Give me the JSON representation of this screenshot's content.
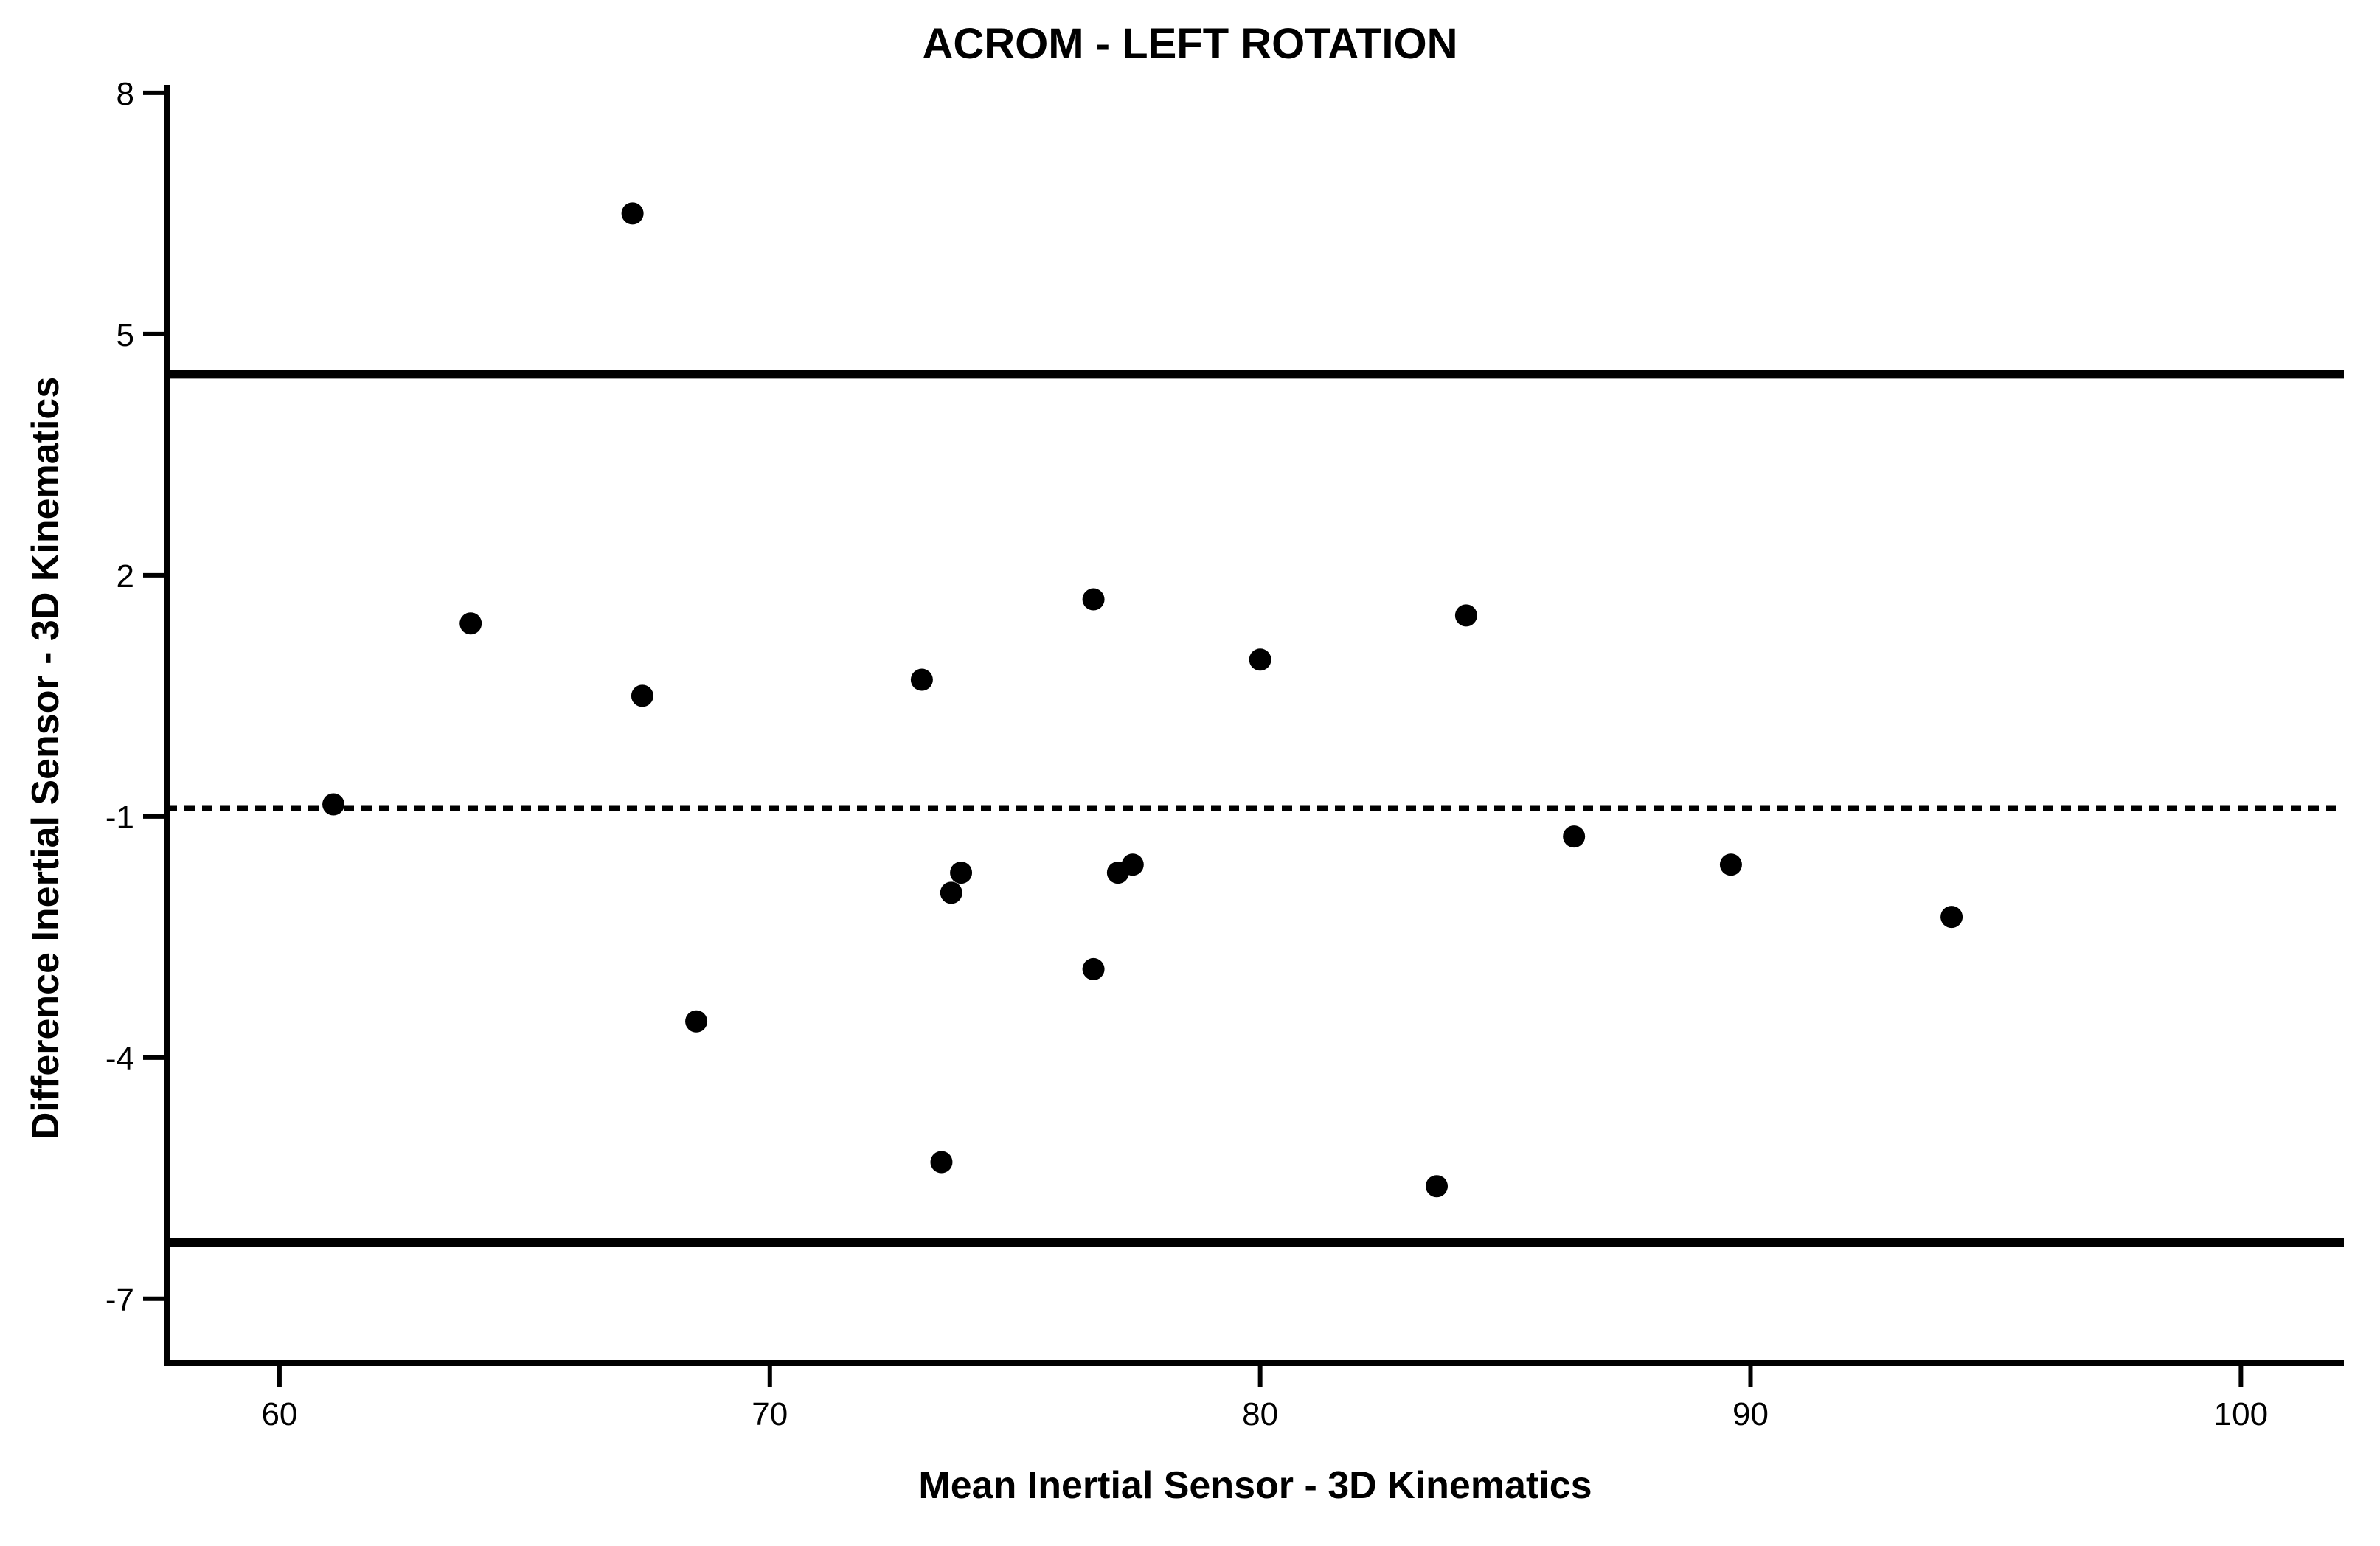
{
  "title": "ACROM - LEFT ROTATION",
  "chart_data": {
    "type": "scatter",
    "title": "ACROM - LEFT ROTATION",
    "xlabel": "Mean Inertial Sensor - 3D Kinematics",
    "ylabel": "Difference Inertial Sensor - 3D Kinematics",
    "xlim": [
      57.7,
      102.1
    ],
    "ylim": [
      -7.8,
      8.1
    ],
    "x_ticks": [
      60,
      70,
      80,
      90,
      100
    ],
    "y_ticks": [
      8,
      5,
      2,
      -1,
      -4,
      -7
    ],
    "grid": false,
    "legend": null,
    "marker": {
      "shape": "circle",
      "color": "#000000",
      "radius_px": 15
    },
    "axis_color": "#000000",
    "background_color": "#ffffff",
    "reference_lines": [
      {
        "name": "upper-limit-of-agreement",
        "value": 4.5,
        "style": "solid"
      },
      {
        "name": "mean-difference",
        "value": -0.9,
        "style": "dashed"
      },
      {
        "name": "lower-limit-of-agreement",
        "value": -6.3,
        "style": "solid"
      }
    ],
    "points": [
      {
        "x": 67.2,
        "y": 6.5
      },
      {
        "x": 63.9,
        "y": 1.4
      },
      {
        "x": 76.6,
        "y": 1.7
      },
      {
        "x": 84.2,
        "y": 1.5
      },
      {
        "x": 80.0,
        "y": 0.95
      },
      {
        "x": 73.1,
        "y": 0.7
      },
      {
        "x": 67.4,
        "y": 0.5
      },
      {
        "x": 61.1,
        "y": -0.85
      },
      {
        "x": 86.4,
        "y": -1.25
      },
      {
        "x": 89.6,
        "y": -1.6
      },
      {
        "x": 94.1,
        "y": -2.25
      },
      {
        "x": 73.9,
        "y": -1.7
      },
      {
        "x": 73.7,
        "y": -1.95
      },
      {
        "x": 77.1,
        "y": -1.7
      },
      {
        "x": 77.4,
        "y": -1.6
      },
      {
        "x": 76.6,
        "y": -2.9
      },
      {
        "x": 68.5,
        "y": -3.55
      },
      {
        "x": 73.5,
        "y": -5.3
      },
      {
        "x": 83.6,
        "y": -5.6
      }
    ]
  }
}
